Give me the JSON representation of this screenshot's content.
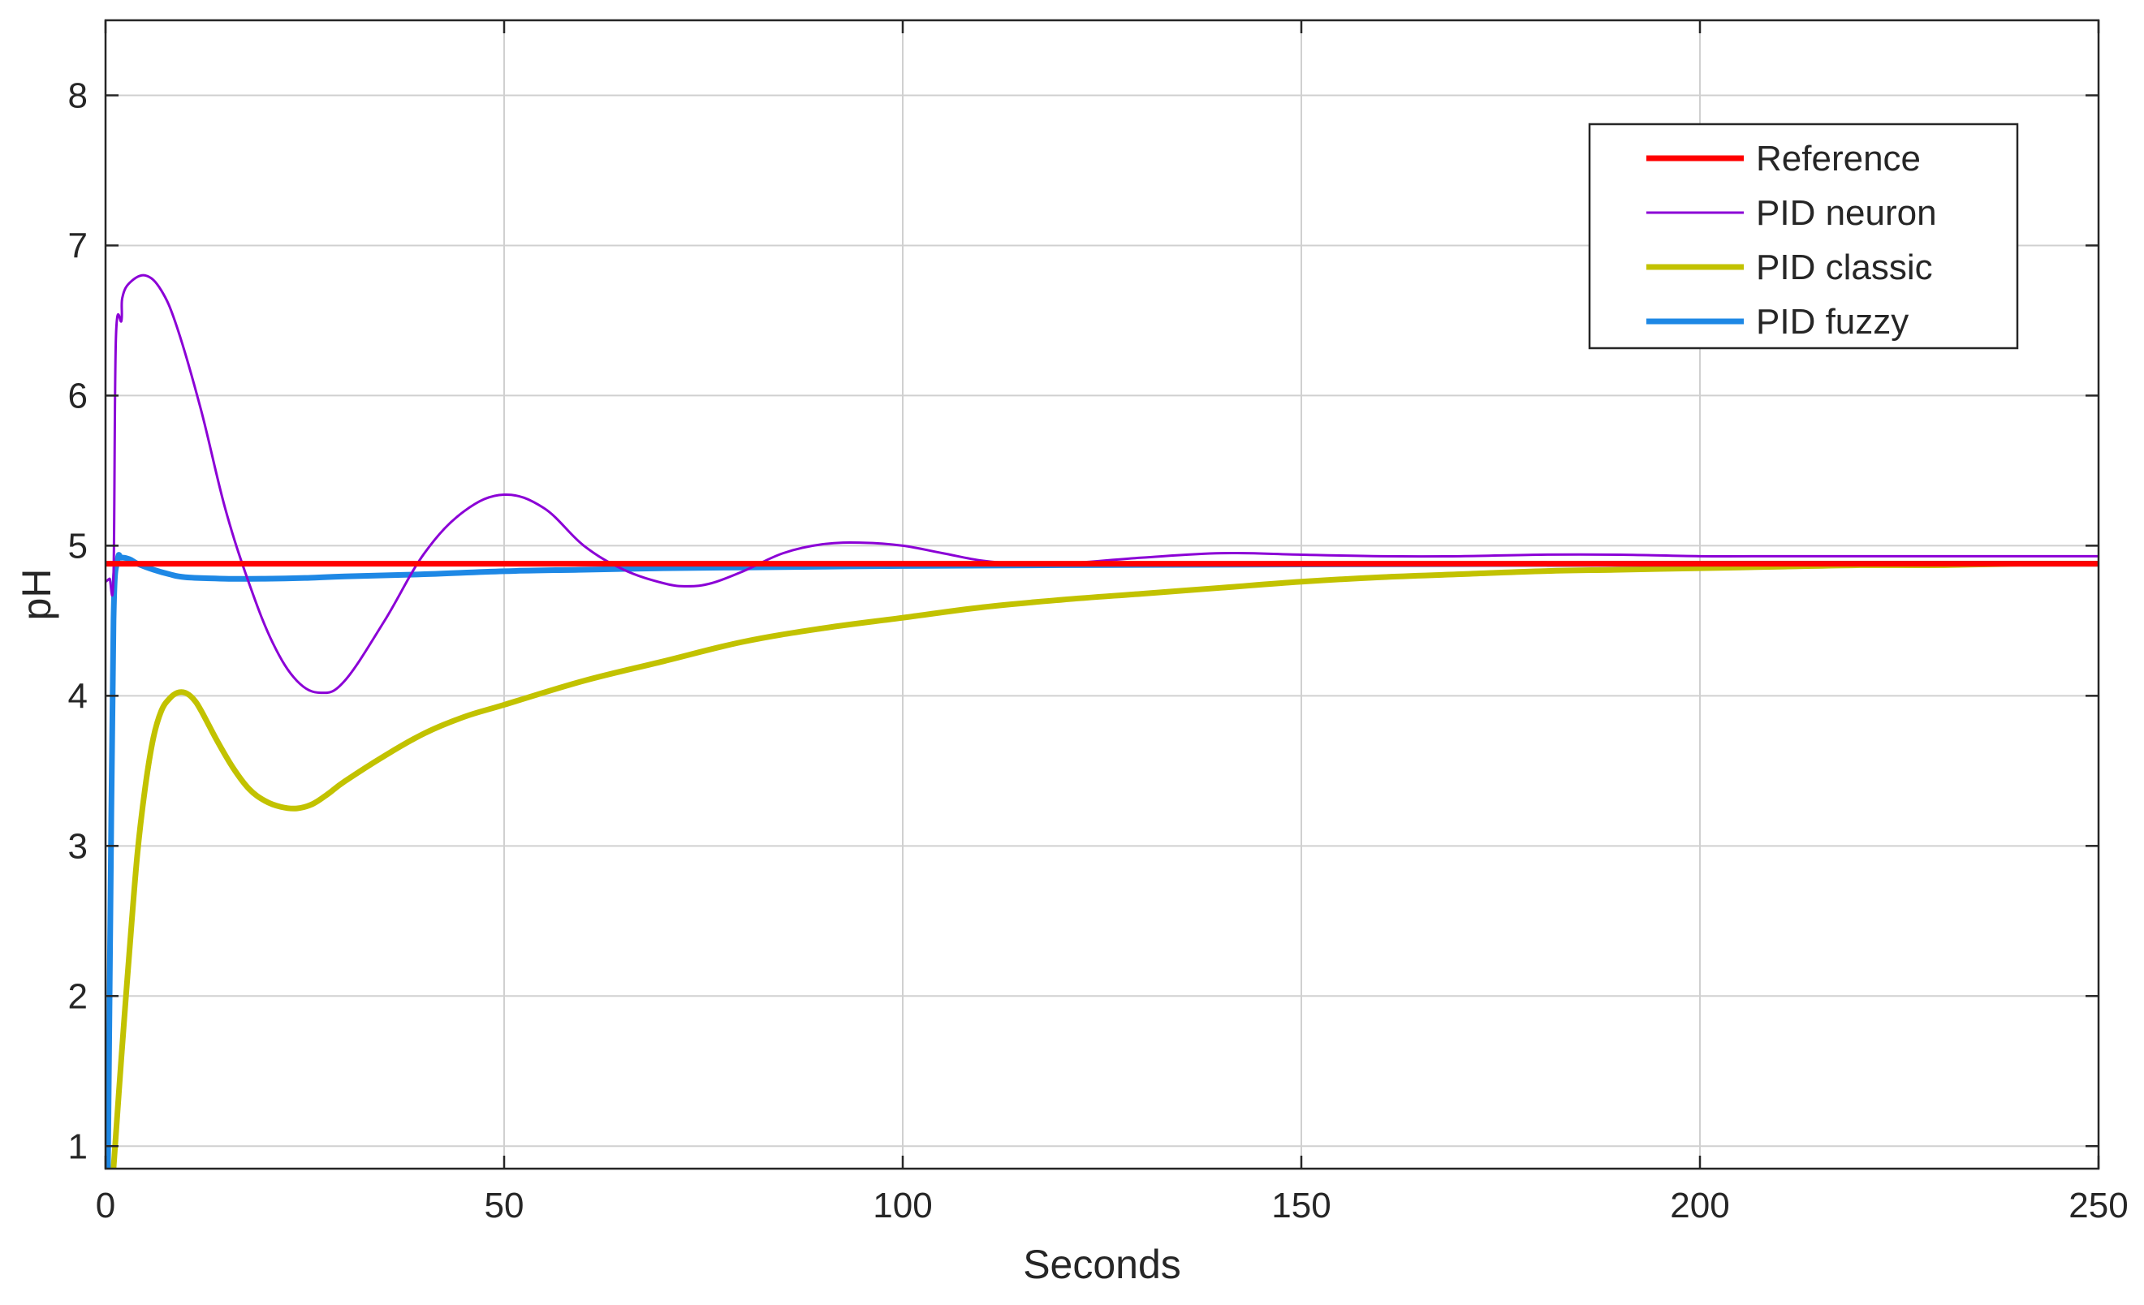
{
  "chart_data": {
    "type": "line",
    "title": "",
    "xlabel": "Seconds",
    "ylabel": "pH",
    "xlim": [
      0,
      250
    ],
    "ylim": [
      0.85,
      8.5
    ],
    "xticks": [
      0,
      50,
      100,
      150,
      200,
      250
    ],
    "yticks": [
      1,
      2,
      3,
      4,
      5,
      6,
      7,
      8
    ],
    "grid": true,
    "legend_position": "top-right",
    "series": [
      {
        "name": "Reference",
        "color": "#ff0000",
        "width": "thick",
        "x": [
          0,
          250
        ],
        "y": [
          4.88,
          4.88
        ]
      },
      {
        "name": "PID neuron",
        "color": "#8b00d6",
        "width": "thin",
        "x": [
          0,
          0.5,
          1,
          1.3,
          2,
          2.1,
          3,
          5,
          7,
          9,
          12,
          15,
          18,
          21,
          24,
          27,
          30,
          35,
          40,
          45,
          50,
          55,
          60,
          65,
          70,
          73,
          76,
          80,
          85,
          90,
          95,
          100,
          105,
          110,
          115,
          120,
          130,
          140,
          150,
          160,
          170,
          180,
          190,
          200,
          210,
          220,
          230,
          240,
          250
        ],
        "y": [
          4.76,
          4.78,
          4.8,
          6.38,
          6.5,
          6.65,
          6.75,
          6.8,
          6.7,
          6.45,
          5.9,
          5.25,
          4.75,
          4.35,
          4.1,
          4.02,
          4.1,
          4.5,
          4.95,
          5.23,
          5.34,
          5.25,
          5.0,
          4.84,
          4.75,
          4.73,
          4.75,
          4.83,
          4.95,
          5.01,
          5.02,
          5.0,
          4.95,
          4.9,
          4.88,
          4.88,
          4.92,
          4.95,
          4.94,
          4.93,
          4.93,
          4.94,
          4.94,
          4.93,
          4.93,
          4.93,
          4.93,
          4.93,
          4.93
        ]
      },
      {
        "name": "PID classic",
        "color": "#c2c200",
        "width": "thick",
        "x": [
          1,
          2,
          3,
          4,
          5,
          6,
          7,
          8,
          9,
          10,
          11,
          12,
          14,
          16,
          18,
          20,
          22,
          24,
          26,
          28,
          30,
          35,
          40,
          45,
          50,
          60,
          70,
          80,
          90,
          100,
          110,
          120,
          130,
          140,
          150,
          160,
          170,
          180,
          190,
          200,
          210,
          220,
          230,
          240,
          250
        ],
        "y": [
          0.85,
          1.6,
          2.3,
          2.95,
          3.4,
          3.72,
          3.9,
          3.98,
          4.02,
          4.02,
          3.98,
          3.9,
          3.7,
          3.52,
          3.38,
          3.3,
          3.26,
          3.25,
          3.28,
          3.35,
          3.43,
          3.6,
          3.75,
          3.86,
          3.94,
          4.1,
          4.23,
          4.36,
          4.45,
          4.52,
          4.59,
          4.64,
          4.68,
          4.72,
          4.76,
          4.79,
          4.81,
          4.83,
          4.84,
          4.85,
          4.86,
          4.87,
          4.87,
          4.88,
          4.88
        ]
      },
      {
        "name": "PID fuzzy",
        "color": "#1e88e5",
        "width": "thick",
        "x": [
          0.3,
          0.6,
          1,
          1.5,
          2,
          3,
          4,
          6,
          8,
          10,
          15,
          20,
          25,
          30,
          40,
          50,
          60,
          70,
          80,
          90,
          100,
          120,
          150,
          200,
          250
        ],
        "y": [
          0.85,
          2.5,
          4.5,
          4.9,
          4.92,
          4.91,
          4.88,
          4.84,
          4.81,
          4.79,
          4.78,
          4.78,
          4.785,
          4.795,
          4.81,
          4.83,
          4.84,
          4.85,
          4.855,
          4.86,
          4.865,
          4.87,
          4.875,
          4.88,
          4.88
        ]
      }
    ]
  }
}
